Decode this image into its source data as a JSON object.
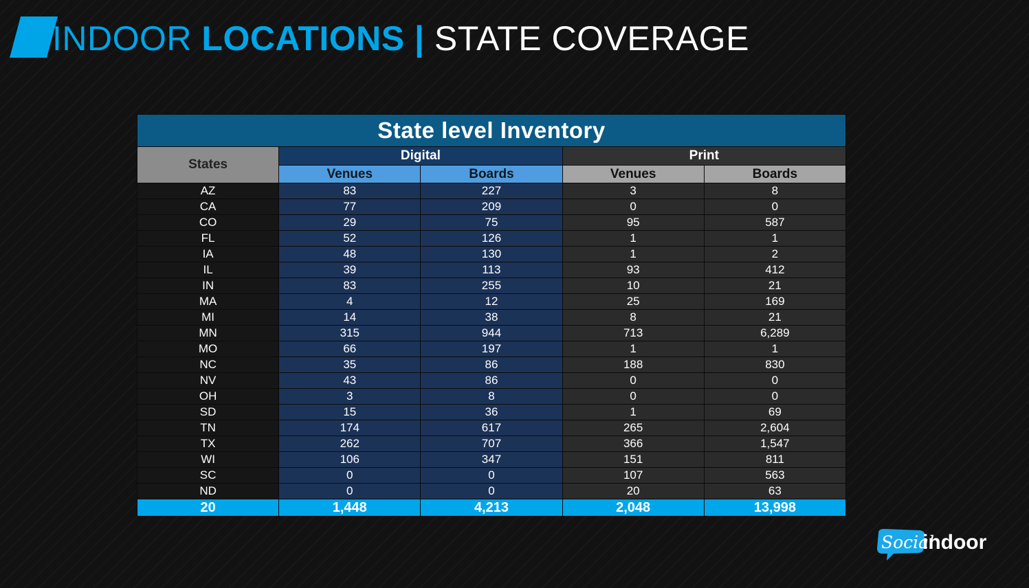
{
  "header": {
    "part1": "INDOOR ",
    "part2": "LOCATIONS",
    "part3": " | ",
    "part4": "STATE COVERAGE"
  },
  "colors": {
    "accent": "#00a5e8",
    "table_caption": "#0c5a86",
    "digital_header": "#163a66",
    "digital_subheader": "#4f9de0",
    "print_header": "#323232",
    "print_subheader": "#a5a5a5",
    "total_row": "#00a6ea"
  },
  "table": {
    "caption": "State level Inventory",
    "states_header": "States",
    "digital_header": "Digital",
    "print_header": "Print",
    "venues_label": "Venues",
    "boards_label": "Boards",
    "rows": [
      {
        "state": "AZ",
        "dv": "83",
        "db": "227",
        "pv": "3",
        "pb": "8"
      },
      {
        "state": "CA",
        "dv": "77",
        "db": "209",
        "pv": "0",
        "pb": "0"
      },
      {
        "state": "CO",
        "dv": "29",
        "db": "75",
        "pv": "95",
        "pb": "587"
      },
      {
        "state": "FL",
        "dv": "52",
        "db": "126",
        "pv": "1",
        "pb": "1"
      },
      {
        "state": "IA",
        "dv": "48",
        "db": "130",
        "pv": "1",
        "pb": "2"
      },
      {
        "state": "IL",
        "dv": "39",
        "db": "113",
        "pv": "93",
        "pb": "412"
      },
      {
        "state": "IN",
        "dv": "83",
        "db": "255",
        "pv": "10",
        "pb": "21"
      },
      {
        "state": "MA",
        "dv": "4",
        "db": "12",
        "pv": "25",
        "pb": "169"
      },
      {
        "state": "MI",
        "dv": "14",
        "db": "38",
        "pv": "8",
        "pb": "21"
      },
      {
        "state": "MN",
        "dv": "315",
        "db": "944",
        "pv": "713",
        "pb": "6,289"
      },
      {
        "state": "MO",
        "dv": "66",
        "db": "197",
        "pv": "1",
        "pb": "1"
      },
      {
        "state": "NC",
        "dv": "35",
        "db": "86",
        "pv": "188",
        "pb": "830"
      },
      {
        "state": "NV",
        "dv": "43",
        "db": "86",
        "pv": "0",
        "pb": "0"
      },
      {
        "state": "OH",
        "dv": "3",
        "db": "8",
        "pv": "0",
        "pb": "0"
      },
      {
        "state": "SD",
        "dv": "15",
        "db": "36",
        "pv": "1",
        "pb": "69"
      },
      {
        "state": "TN",
        "dv": "174",
        "db": "617",
        "pv": "265",
        "pb": "2,604"
      },
      {
        "state": "TX",
        "dv": "262",
        "db": "707",
        "pv": "366",
        "pb": "1,547"
      },
      {
        "state": "WI",
        "dv": "106",
        "db": "347",
        "pv": "151",
        "pb": "811"
      },
      {
        "state": "SC",
        "dv": "0",
        "db": "0",
        "pv": "107",
        "pb": "563"
      },
      {
        "state": "ND",
        "dv": "0",
        "db": "0",
        "pv": "20",
        "pb": "63"
      }
    ],
    "totals": {
      "state": "20",
      "dv": "1,448",
      "db": "4,213",
      "pv": "2,048",
      "pb": "13,998"
    }
  },
  "logo": {
    "script": "Social",
    "word": "indoor",
    "icon": "speech-bubble-icon"
  }
}
